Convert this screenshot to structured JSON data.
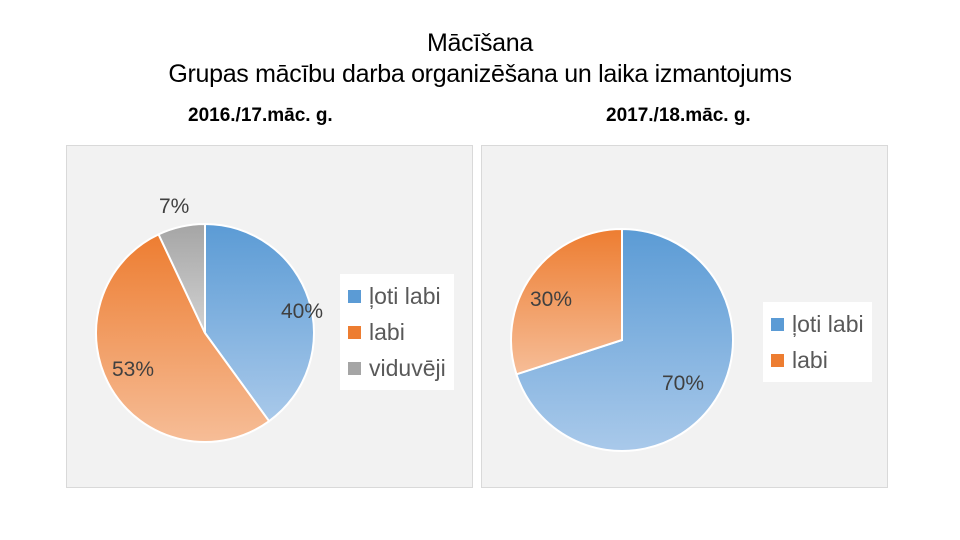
{
  "title_line1": "Mācīšana",
  "title_line2": "Grupas mācību darba organizēšana un laika izmantojums",
  "colors": {
    "loti_labi": "#5b9bd5",
    "labi": "#ed7d31",
    "viduveji": "#a5a5a5"
  },
  "chart_data": [
    {
      "type": "pie",
      "title": "2016./17.māc. g.",
      "categories": [
        "ļoti labi",
        "labi",
        "viduvēji"
      ],
      "values": [
        40,
        53,
        7
      ],
      "labels": [
        "40%",
        "53%",
        "7%"
      ],
      "legend": "right"
    },
    {
      "type": "pie",
      "title": "2017./18.māc. g.",
      "categories": [
        "ļoti labi",
        "labi"
      ],
      "values": [
        70,
        30
      ],
      "labels": [
        "70%",
        "30%"
      ],
      "legend": "right"
    }
  ]
}
